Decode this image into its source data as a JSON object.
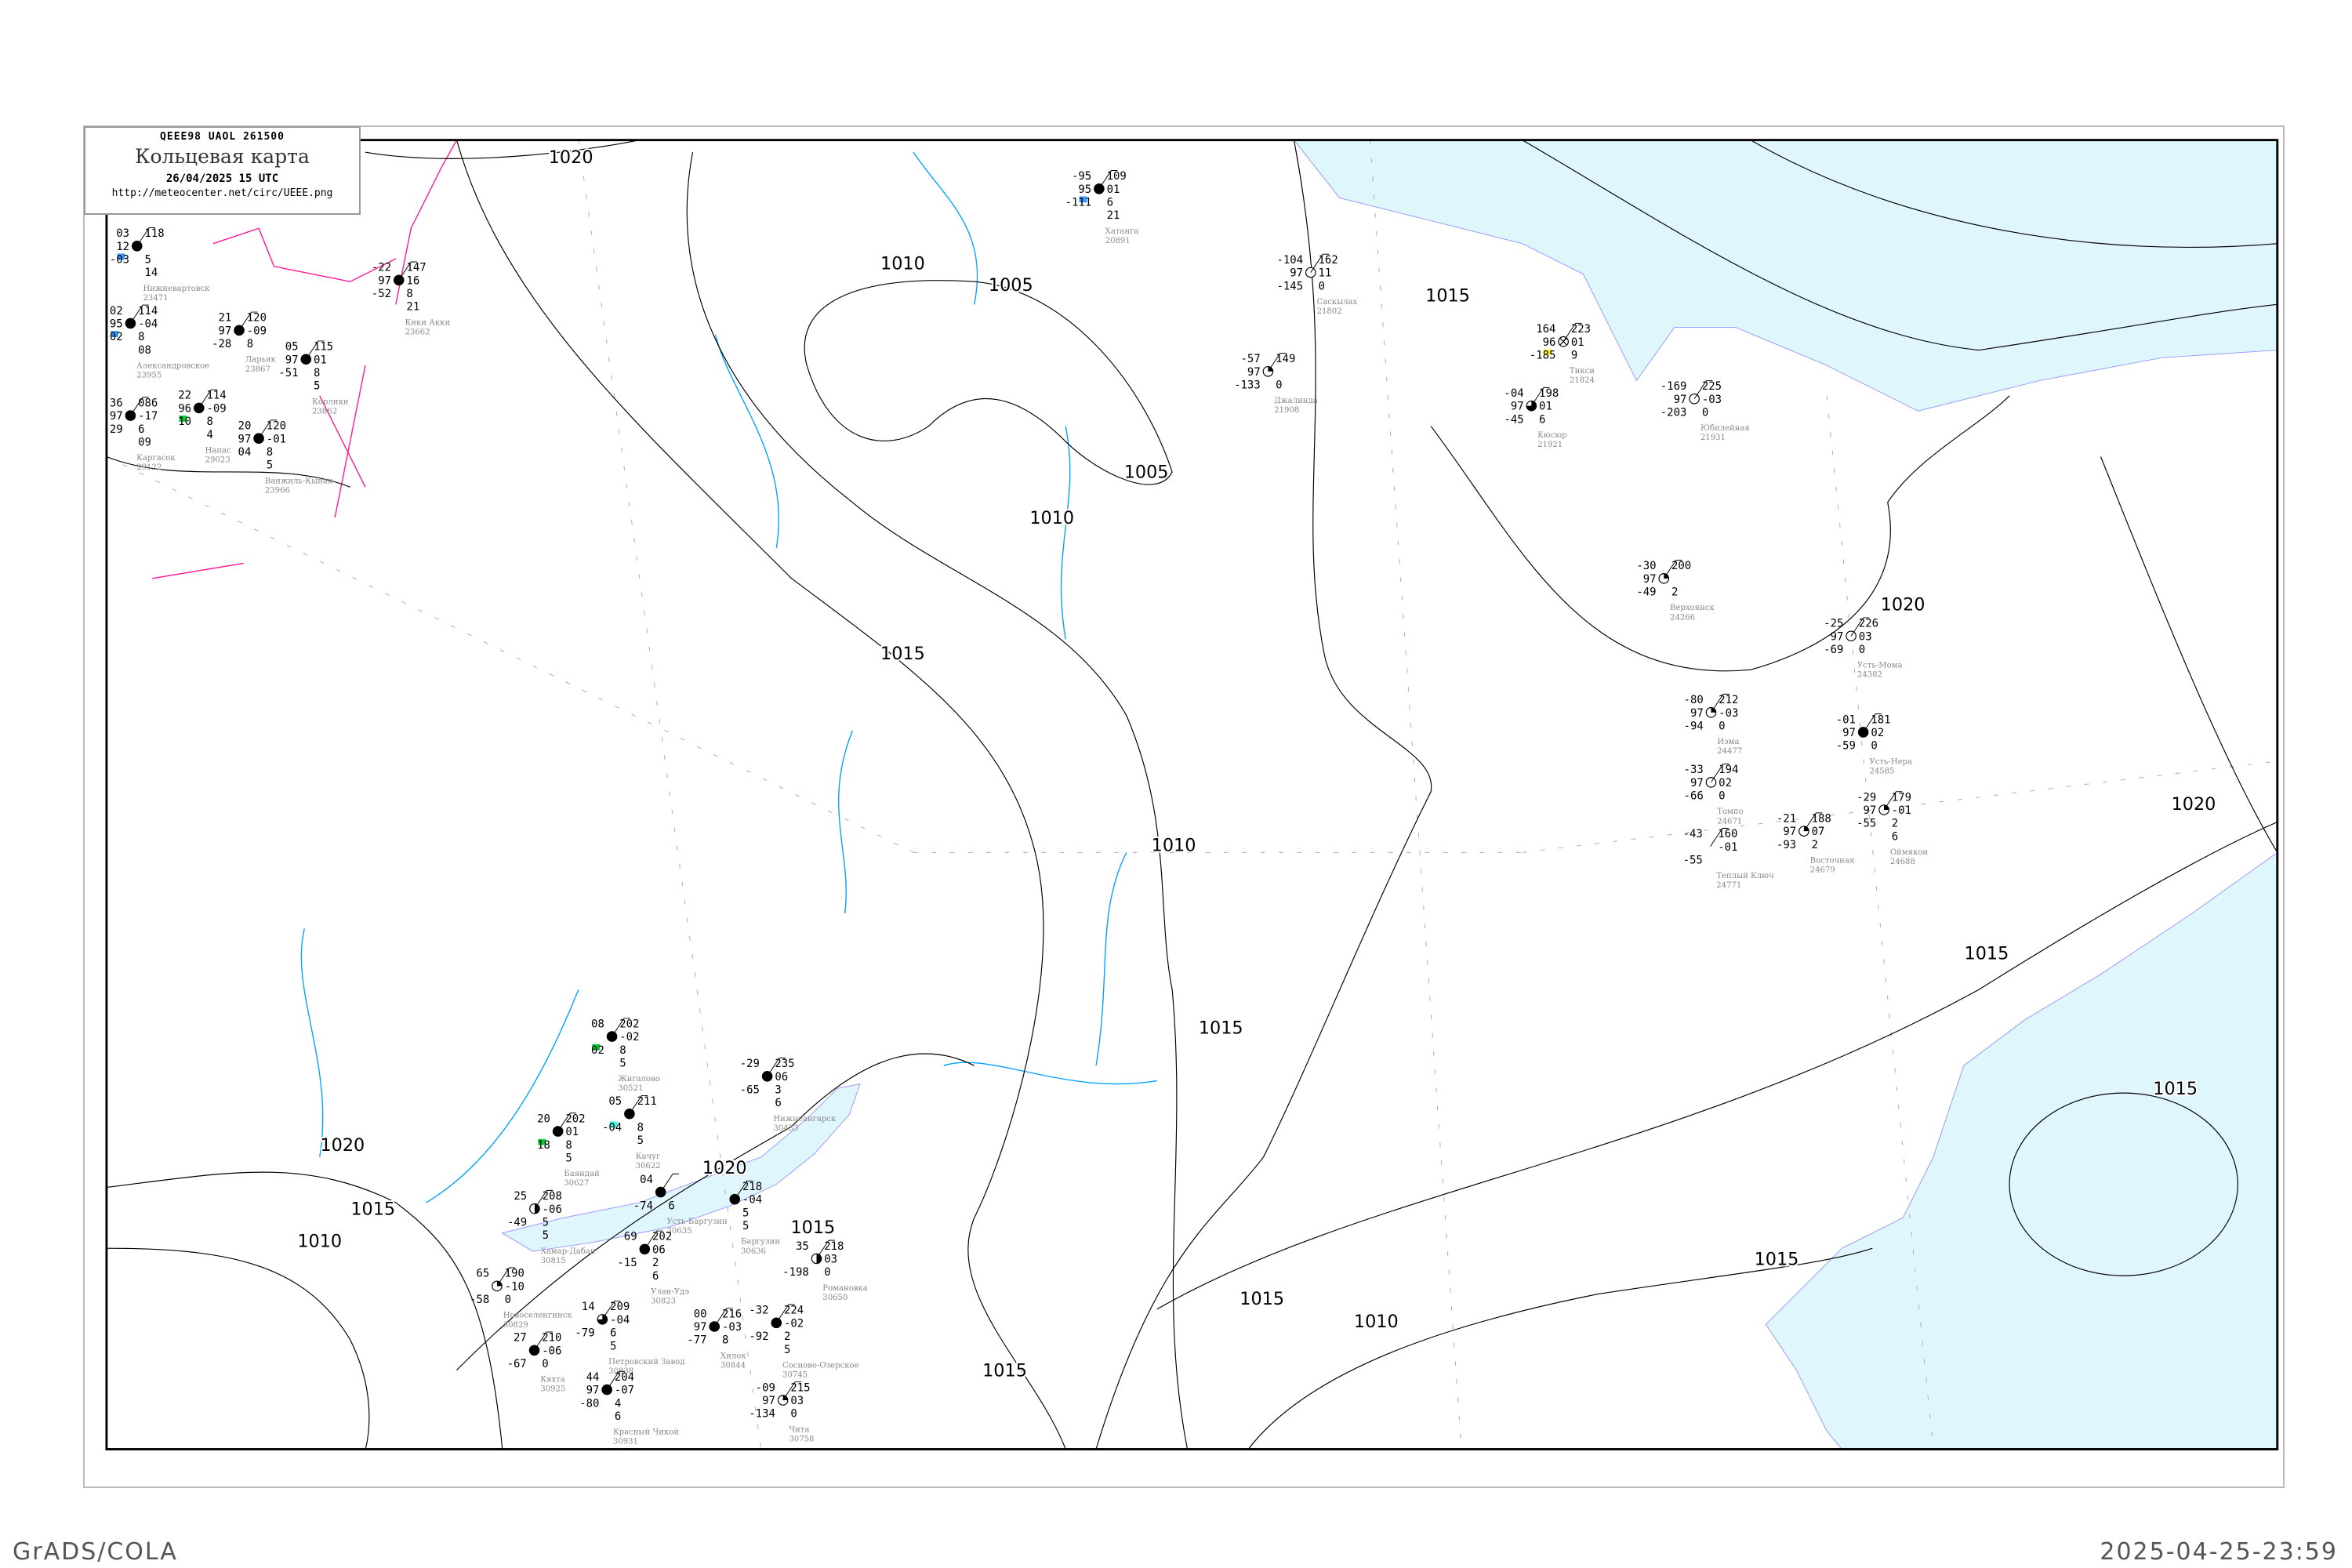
{
  "header": {
    "code": "QEEE98  UAOL  261500",
    "title": "Кольцевая карта",
    "date": "26/04/2025 15 UTC",
    "url": "http://meteocenter.net/circ/UEEE.png"
  },
  "footer": {
    "left": "GrADS/COLA",
    "right": "2025-04-25-23:59"
  },
  "colors": {
    "water": "#e0f6fd",
    "coastline": "#9999ff",
    "rivers": "#00a0ff",
    "isobars": "#000000",
    "fronts": "#ff1493",
    "station_name": "#888888",
    "marker_blue": "#3399ff",
    "marker_green": "#00cc33",
    "marker_yellow": "#ffff33"
  },
  "isobar_labels": [
    "1020",
    "1010",
    "1005",
    "1005",
    "1010",
    "1015",
    "1015",
    "1020",
    "1020",
    "1015",
    "1015",
    "1015",
    "1010",
    "1015",
    "1010",
    "1015",
    "1020",
    "1015",
    "1015",
    "1020",
    "1015",
    "1010"
  ],
  "stations": [
    {
      "name": "Нижневартовск",
      "id": "23471",
      "t": "03",
      "p": "118",
      "vis": "12",
      "dp": "",
      "td": "-03",
      "extra": [
        "5",
        "14"
      ],
      "cover": "full",
      "marker": "blue"
    },
    {
      "name": "Александровское",
      "id": "23955",
      "t": "02",
      "p": "114",
      "vis": "95",
      "dp": "-04",
      "td": "02",
      "extra": [
        "8",
        "08"
      ],
      "cover": "full",
      "marker": "blue"
    },
    {
      "name": "Ларьяк",
      "id": "23867",
      "t": "21",
      "p": "120",
      "vis": "97",
      "dp": "-09",
      "td": "-28",
      "extra": [
        "8"
      ],
      "cover": "full"
    },
    {
      "name": "Корлики",
      "id": "23862",
      "t": "05",
      "p": "115",
      "vis": "97",
      "dp": "01",
      "td": "-51",
      "extra": [
        "8",
        "5"
      ],
      "cover": "full"
    },
    {
      "name": "Каргасок",
      "id": "29122",
      "t": "36",
      "p": "086",
      "vis": "97",
      "dp": "-17",
      "td": "29",
      "extra": [
        "6",
        "09"
      ],
      "cover": "full"
    },
    {
      "name": "Напас",
      "id": "29023",
      "t": "22",
      "p": "114",
      "vis": "96",
      "dp": "-09",
      "td": "10",
      "extra": [
        "8",
        "4"
      ],
      "cover": "full",
      "marker": "green"
    },
    {
      "name": "Ванжиль-Кынак",
      "id": "23966",
      "t": "20",
      "p": "120",
      "vis": "97",
      "dp": "-01",
      "td": "04",
      "extra": [
        "8",
        "5"
      ],
      "cover": "full"
    },
    {
      "name": "Кики Акки",
      "id": "23662",
      "t": "-22",
      "p": "147",
      "vis": "97",
      "dp": "16",
      "td": "-52",
      "extra": [
        "8",
        "21"
      ],
      "cover": "full"
    },
    {
      "name": "Хатанга",
      "id": "20891",
      "t": "-95",
      "p": "109",
      "vis": "95",
      "dp": "01",
      "td": "-111",
      "extra": [
        "6",
        "21"
      ],
      "cover": "full",
      "marker": "blue"
    },
    {
      "name": "Саскылах",
      "id": "21802",
      "t": "-104",
      "p": "162",
      "vis": "97",
      "dp": "11",
      "td": "-145",
      "extra": [
        "0"
      ],
      "cover": "empty"
    },
    {
      "name": "Джалинда",
      "id": "21908",
      "t": "-57",
      "p": "149",
      "vis": "97",
      "dp": "",
      "td": "-133",
      "extra": [
        "0"
      ],
      "cover": "quarter"
    },
    {
      "name": "Кюсюр",
      "id": "21921",
      "t": "-04",
      "p": "198",
      "vis": "97",
      "dp": "01",
      "td": "-45",
      "extra": [
        "6"
      ],
      "cover": "three"
    },
    {
      "name": "Тикси",
      "id": "21824",
      "t": "164",
      "p": "223",
      "vis": "96",
      "dp": "01",
      "td": "-185",
      "extra": [
        "9"
      ],
      "cover": "obscured",
      "marker": "yellow"
    },
    {
      "name": "Юбилейная",
      "id": "21931",
      "t": "-169",
      "p": "225",
      "vis": "97",
      "dp": "-03",
      "td": "-203",
      "extra": [
        "0"
      ],
      "cover": "empty"
    },
    {
      "name": "Верхоянск",
      "id": "24266",
      "t": "-30",
      "p": "200",
      "vis": "97",
      "dp": "",
      "td": "-49",
      "extra": [
        "2"
      ],
      "cover": "quarter"
    },
    {
      "name": "Усть-Мома",
      "id": "24382",
      "t": "-25",
      "p": "226",
      "vis": "97",
      "dp": "03",
      "td": "-69",
      "extra": [
        "0"
      ],
      "cover": "empty"
    },
    {
      "name": "Иэма",
      "id": "24477",
      "t": "-80",
      "p": "212",
      "vis": "97",
      "dp": "-03",
      "td": "-94",
      "extra": [
        "0"
      ],
      "cover": "quarter"
    },
    {
      "name": "Усть-Нера",
      "id": "24585",
      "t": "-01",
      "p": "181",
      "vis": "97",
      "dp": "02",
      "td": "-59",
      "extra": [
        "0"
      ],
      "cover": "full"
    },
    {
      "name": "Томпо",
      "id": "24671",
      "t": "-33",
      "p": "194",
      "vis": "97",
      "dp": "02",
      "td": "-66",
      "extra": [
        "0"
      ],
      "cover": "empty"
    },
    {
      "name": "Оймякон",
      "id": "24688",
      "t": "-29",
      "p": "179",
      "vis": "97",
      "dp": "-01",
      "td": "-55",
      "extra": [
        "2",
        "6"
      ],
      "cover": "quarter"
    },
    {
      "name": "Восточная",
      "id": "24679",
      "t": "-21",
      "p": "188",
      "vis": "97",
      "dp": "07",
      "td": "-93",
      "extra": [
        "2"
      ],
      "cover": "quarter"
    },
    {
      "name": "Теплый Ключ",
      "id": "24771",
      "t": "-43",
      "p": "160",
      "vis": "",
      "dp": "-01",
      "td": "-55",
      "extra": [],
      "cover": "none"
    },
    {
      "name": "Жигалово",
      "id": "30521",
      "t": "08",
      "p": "202",
      "vis": "",
      "dp": "-02",
      "td": "02",
      "extra": [
        "8",
        "5"
      ],
      "cover": "full",
      "marker": "green"
    },
    {
      "name": "Качуг",
      "id": "30622",
      "t": "05",
      "p": "211",
      "vis": "",
      "dp": "",
      "td": "-04",
      "extra": [
        "8",
        "5"
      ],
      "cover": "full",
      "marker": "cyan"
    },
    {
      "name": "Баяндай",
      "id": "30627",
      "t": "20",
      "p": "202",
      "vis": "",
      "dp": "01",
      "td": "18",
      "extra": [
        "8",
        "5"
      ],
      "cover": "full",
      "marker": "green"
    },
    {
      "name": "Нижнеангарск",
      "id": "30433",
      "t": "-29",
      "p": "235",
      "vis": "",
      "dp": "06",
      "td": "-65",
      "extra": [
        "3",
        "6"
      ],
      "cover": "full"
    },
    {
      "name": "Усть-Баргузин",
      "id": "30635",
      "t": "04",
      "p": "",
      "vis": "",
      "dp": "",
      "td": "-74",
      "extra": [
        "6"
      ],
      "cover": "full"
    },
    {
      "name": "Баргузин",
      "id": "30636",
      "t": "",
      "p": "218",
      "vis": "",
      "dp": "-04",
      "td": "",
      "extra": [
        "5",
        "5"
      ],
      "cover": "full"
    },
    {
      "name": "Хамар-Дабан",
      "id": "30815",
      "t": "25",
      "p": "208",
      "vis": "",
      "dp": "-06",
      "td": "-49",
      "extra": [
        "5",
        "5"
      ],
      "cover": "half"
    },
    {
      "name": "Улан-Удэ",
      "id": "30823",
      "t": "69",
      "p": "202",
      "vis": "",
      "dp": "06",
      "td": "-15",
      "extra": [
        "2",
        "6"
      ],
      "cover": "full"
    },
    {
      "name": "Новоселенгинск",
      "id": "30829",
      "t": "65",
      "p": "190",
      "vis": "",
      "dp": "-10",
      "td": "-58",
      "extra": [
        "0"
      ],
      "cover": "quarter"
    },
    {
      "name": "Петровский Завод",
      "id": "30838",
      "t": "14",
      "p": "209",
      "vis": "",
      "dp": "-04",
      "td": "-79",
      "extra": [
        "6",
        "5"
      ],
      "cover": "three"
    },
    {
      "name": "Хилок",
      "id": "30844",
      "t": "00",
      "p": "216",
      "vis": "97",
      "dp": "-03",
      "td": "-77",
      "extra": [
        "8"
      ],
      "cover": "full"
    },
    {
      "name": "Кяхта",
      "id": "30925",
      "t": "27",
      "p": "210",
      "vis": "",
      "dp": "-06",
      "td": "-67",
      "extra": [
        "0"
      ],
      "cover": "full"
    },
    {
      "name": "Красный Чикой",
      "id": "30931",
      "t": "44",
      "p": "204",
      "vis": "97",
      "dp": "-07",
      "td": "-80",
      "extra": [
        "4",
        "6"
      ],
      "cover": "full"
    },
    {
      "name": "Чита",
      "id": "30758",
      "t": "-09",
      "p": "215",
      "vis": "97",
      "dp": "03",
      "td": "-134",
      "extra": [
        "0"
      ],
      "cover": "quarter"
    },
    {
      "name": "Романовка",
      "id": "30650",
      "t": "35",
      "p": "218",
      "vis": "",
      "dp": "03",
      "td": "-198",
      "extra": [
        "0"
      ],
      "cover": "half"
    },
    {
      "name": "Сосново-Озерское",
      "id": "30745",
      "t": "-32",
      "p": "224",
      "vis": "",
      "dp": "-02",
      "td": "-92",
      "extra": [
        "2",
        "5"
      ],
      "cover": "full"
    }
  ]
}
